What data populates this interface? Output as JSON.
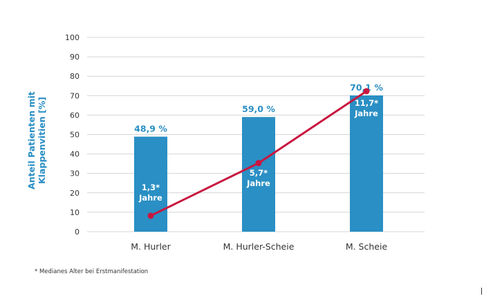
{
  "colors": {
    "bar": "#2a8fc4",
    "line": "#c8173f",
    "grid": "#d4d4d4",
    "axis_label": "#2a8fc4",
    "tick": "#333333",
    "bar_label_outside": "#2a8fc4",
    "bar_label_inside": "#ffffff"
  },
  "footnote": "* Medianes Alter bei Erstmanifestation",
  "chart_data": {
    "type": "bar",
    "categories": [
      "M. Hurler",
      "M. Hurler-Scheie",
      "M. Scheie"
    ],
    "values": [
      48.9,
      59.0,
      70.1
    ],
    "value_labels": [
      "48,9 %",
      "59,0 %",
      "70,1 %"
    ],
    "ylabel_lines": [
      "Anteil Patienten mit",
      "Klappenvitien [%]"
    ],
    "ylim": [
      0,
      100
    ],
    "yticks": [
      0,
      10,
      20,
      30,
      40,
      50,
      60,
      70,
      80,
      90,
      100
    ],
    "grid": true,
    "line_series": {
      "values": [
        8.2,
        35.3,
        72.3
      ],
      "labels": [
        [
          "1,3*",
          "Jahre"
        ],
        [
          "5,7*",
          "Jahre"
        ],
        [
          "11,7*",
          "Jahre"
        ]
      ]
    }
  }
}
